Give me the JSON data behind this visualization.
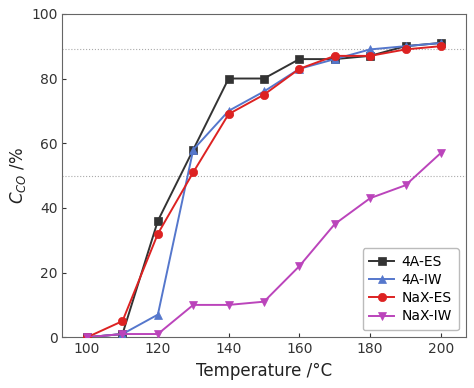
{
  "series": {
    "4A-ES": {
      "x": [
        100,
        110,
        120,
        130,
        140,
        150,
        160,
        170,
        180,
        190,
        200
      ],
      "y": [
        0,
        1,
        36,
        58,
        80,
        80,
        86,
        86,
        87,
        90,
        91
      ],
      "color": "#333333",
      "marker": "s",
      "markersize": 6,
      "linewidth": 1.4
    },
    "4A-IW": {
      "x": [
        100,
        110,
        120,
        130,
        140,
        150,
        160,
        170,
        180,
        190,
        200
      ],
      "y": [
        0,
        1,
        7,
        58,
        70,
        76,
        83,
        86,
        89,
        90,
        91
      ],
      "color": "#5577cc",
      "marker": "^",
      "markersize": 6,
      "linewidth": 1.4
    },
    "NaX-ES": {
      "x": [
        100,
        110,
        120,
        130,
        140,
        150,
        160,
        170,
        180,
        190,
        200
      ],
      "y": [
        0,
        5,
        32,
        51,
        69,
        75,
        83,
        87,
        87,
        89,
        90
      ],
      "color": "#dd2222",
      "marker": "o",
      "markersize": 6,
      "linewidth": 1.4
    },
    "NaX-IW": {
      "x": [
        100,
        110,
        120,
        130,
        140,
        150,
        160,
        170,
        180,
        190,
        200
      ],
      "y": [
        0,
        1,
        1,
        10,
        10,
        11,
        22,
        35,
        43,
        47,
        57
      ],
      "color": "#bb44bb",
      "marker": "v",
      "markersize": 6,
      "linewidth": 1.4
    }
  },
  "xlabel": "Temperature /°C",
  "ylabel": "$C_{CO}$ /%",
  "xlim": [
    93,
    207
  ],
  "ylim": [
    0,
    100
  ],
  "xticks": [
    100,
    120,
    140,
    160,
    180,
    200
  ],
  "yticks": [
    0,
    20,
    40,
    60,
    80,
    100
  ],
  "hlines": [
    50,
    89
  ],
  "hline_color": "#aaaaaa",
  "hline_linestyle": ":",
  "hline_linewidth": 0.8,
  "background_color": "#ffffff",
  "legend_loc": "lower right",
  "legend_fontsize": 10,
  "axis_fontsize": 12,
  "tick_fontsize": 10,
  "spine_color": "#666666",
  "spine_linewidth": 0.8
}
